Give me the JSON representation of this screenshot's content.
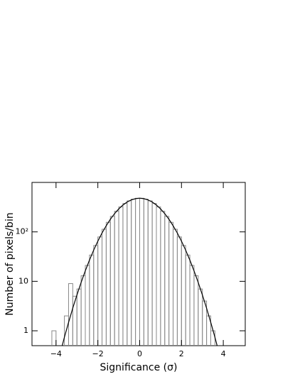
{
  "chart_data": {
    "type": "histogram",
    "x_label": "Significance (σ)",
    "y_label": "Number of pixels/bin",
    "log_y": true,
    "color": "#888888",
    "bins": [
      -4.2,
      -4.0,
      -3.8,
      -3.6,
      -3.4,
      -3.2,
      -3.0,
      -2.8,
      -2.6,
      -2.4,
      -2.2,
      -2.0,
      -1.8,
      -1.6,
      -1.4,
      -1.2,
      -1.0,
      -0.8,
      -0.6,
      -0.4,
      -0.2,
      0.0,
      0.2,
      0.4,
      0.6,
      0.8,
      1.0,
      1.2,
      1.4,
      1.6,
      1.8,
      2.0,
      2.2,
      2.4,
      2.6,
      2.8,
      3.0,
      3.2,
      3.4,
      3.6,
      3.8
    ],
    "counts": [
      1,
      0,
      0,
      2,
      9,
      5,
      7,
      13,
      21,
      34,
      53,
      79,
      113,
      156,
      206,
      262,
      320,
      376,
      424,
      459,
      478,
      478,
      459,
      424,
      376,
      320,
      262,
      206,
      156,
      113,
      79,
      53,
      34,
      21,
      13,
      7,
      4,
      2,
      1,
      0
    ],
    "fit": {
      "color": "#000000",
      "x": [
        -3.8,
        -3.6,
        -3.4,
        -3.2,
        -3.0,
        -2.8,
        -2.6,
        -2.4,
        -2.2,
        -2.0,
        -1.8,
        -1.6,
        -1.4,
        -1.2,
        -1.0,
        -0.8,
        -0.6,
        -0.4,
        -0.2,
        0.0,
        0.2,
        0.4,
        0.6,
        0.8,
        1.0,
        1.2,
        1.4,
        1.6,
        1.8,
        2.0,
        2.2,
        2.4,
        2.6,
        2.8,
        3.0,
        3.2,
        3.4,
        3.6,
        3.8
      ],
      "values": [
        0.35,
        0.74,
        1.48,
        2.87,
        5.3,
        9.5,
        16.3,
        26.9,
        42.7,
        65,
        95,
        133,
        180,
        234,
        291,
        349,
        401,
        443,
        470,
        480,
        470,
        443,
        401,
        349,
        291,
        234,
        180,
        133,
        95,
        65,
        42.7,
        26.9,
        16.3,
        9.5,
        5.3,
        2.87,
        1.48,
        0.74,
        0.35
      ]
    },
    "xlim": [
      -5.15,
      5.05
    ],
    "xticks": [
      {
        "value": -4,
        "label": "−4"
      },
      {
        "value": -2,
        "label": "−2"
      },
      0,
      2,
      4
    ],
    "ylim": [
      0.5,
      1000
    ],
    "yticks": [
      1,
      10,
      {
        "value": 100,
        "label": "10²"
      }
    ]
  }
}
